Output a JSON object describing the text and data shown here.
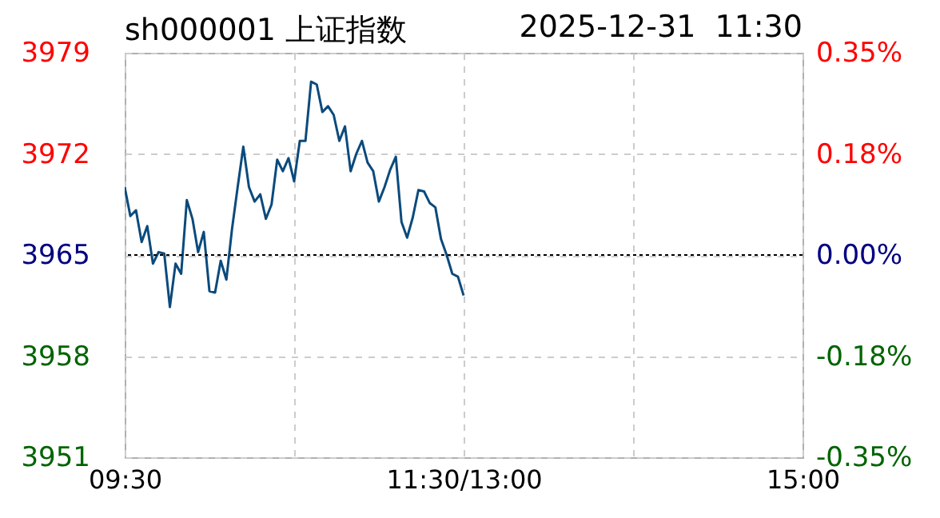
{
  "chart_data": {
    "type": "line",
    "title": "sh000001 上证指数",
    "subtitle": "2025-12-31  11:30",
    "categories": [
      "09:30",
      null,
      null,
      null,
      null,
      null,
      null,
      null,
      null,
      null,
      null,
      null,
      null,
      null,
      null,
      null,
      null,
      null,
      null,
      null,
      null,
      null,
      null,
      null,
      null,
      null,
      null,
      null,
      null,
      null,
      null,
      null,
      null,
      null,
      null,
      null,
      null,
      null,
      null,
      null,
      null,
      null,
      null,
      null,
      null,
      null,
      null,
      null,
      null,
      null,
      null,
      null,
      null,
      null,
      null,
      null,
      null,
      null,
      null,
      null,
      "11:30/13:00",
      null,
      null,
      null,
      null,
      null,
      null,
      null,
      null,
      null,
      null,
      null,
      null,
      null,
      null,
      null,
      null,
      null,
      null,
      null,
      null,
      null,
      null,
      null,
      null,
      null,
      null,
      null,
      null,
      null,
      null,
      null,
      null,
      null,
      null,
      null,
      null,
      null,
      null,
      null,
      null,
      null,
      null,
      null,
      null,
      null,
      null,
      null,
      null,
      null,
      null,
      null,
      null,
      null,
      null,
      null,
      null,
      null,
      null,
      null,
      "15:00"
    ],
    "ylim": [
      3951,
      3979
    ],
    "yticks": [
      3951,
      3958,
      3965,
      3972,
      3979
    ],
    "y2lim": [
      -0.353,
      0.353
    ],
    "y2ticks": [
      {
        "value": -0.353,
        "label": "-0.35%"
      },
      {
        "value": -0.1765,
        "label": "-0.18%"
      },
      {
        "value": 0,
        "label": "0.00%"
      },
      {
        "value": 0.1765,
        "label": "0.18%"
      },
      {
        "value": 0.353,
        "label": "0.35%"
      }
    ],
    "grid": true,
    "ref_lines": [
      {
        "axis": "y",
        "value": 3965,
        "color": "#000000",
        "line_style": "dotted"
      }
    ],
    "series": [
      {
        "color": "#0b4a7c",
        "values": [
          3969.7,
          3967.7,
          3968.1,
          3965.9,
          3967.0,
          3964.4,
          3965.2,
          3965.1,
          3961.4,
          3964.4,
          3963.7,
          3968.8,
          3967.5,
          3965.2,
          3966.6,
          3962.5,
          3962.4,
          3964.6,
          3963.3,
          3966.8,
          3969.7,
          3972.5,
          3969.7,
          3968.7,
          3969.2,
          3967.5,
          3968.5,
          3971.6,
          3970.8,
          3971.7,
          3970.1,
          3972.9,
          3972.9,
          3977.0,
          3976.8,
          3974.9,
          3975.3,
          3974.7,
          3972.9,
          3973.9,
          3970.8,
          3972.0,
          3972.9,
          3971.4,
          3970.8,
          3968.7,
          3969.7,
          3970.9,
          3971.8,
          3967.3,
          3966.2,
          3967.6,
          3969.5,
          3969.4,
          3968.6,
          3968.3,
          3966.1,
          3965.0,
          3963.7,
          3963.5,
          3962.2,
          null,
          null,
          null,
          null,
          null,
          null,
          null,
          null,
          null,
          null,
          null,
          null,
          null,
          null,
          null,
          null,
          null,
          null,
          null,
          null,
          null,
          null,
          null,
          null,
          null,
          null,
          null,
          null,
          null,
          null,
          null,
          null,
          null,
          null,
          null,
          null,
          null,
          null,
          null,
          null,
          null,
          null,
          null,
          null,
          null,
          null,
          null,
          null,
          null,
          null,
          null,
          null,
          null,
          null,
          null,
          null,
          null,
          null,
          null,
          null
        ]
      }
    ]
  }
}
